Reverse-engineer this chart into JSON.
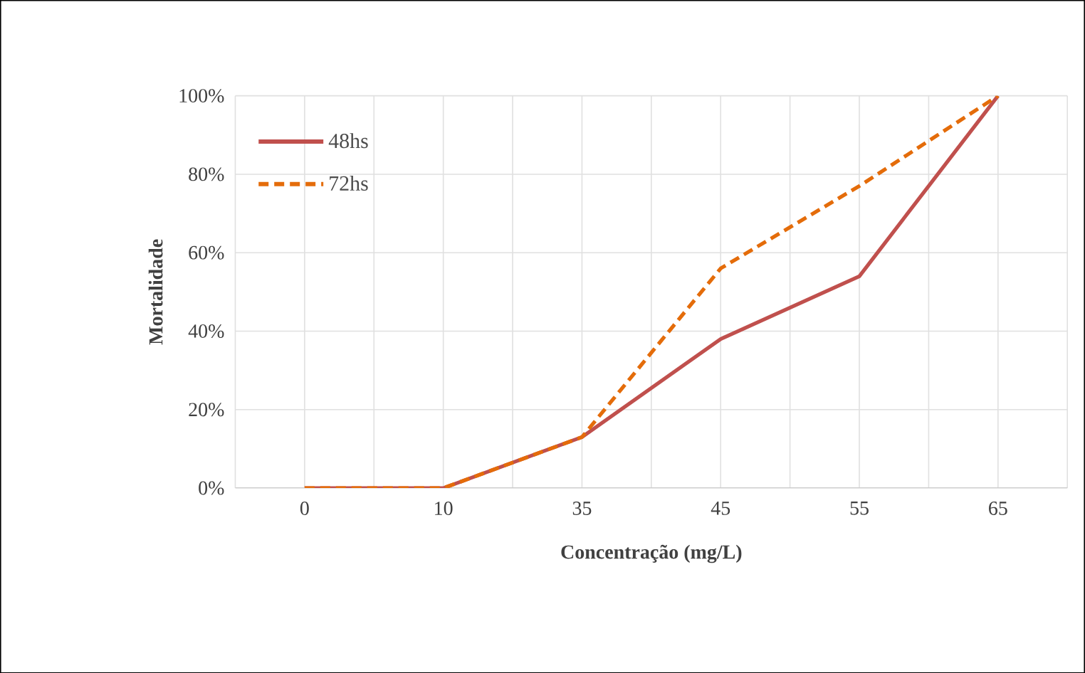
{
  "chart_data": {
    "type": "line",
    "xlabel": "Concentração (mg/L)",
    "ylabel": "Mortalidade",
    "categories": [
      "0",
      "10",
      "35",
      "45",
      "55",
      "65"
    ],
    "series": [
      {
        "name": "48hs",
        "color": "#c0504d",
        "line_style": "solid",
        "values": [
          0,
          0,
          13,
          38,
          54,
          100
        ]
      },
      {
        "name": "72hs",
        "color": "#e46c0a",
        "line_style": "dashed",
        "values": [
          0,
          0,
          13,
          56,
          77,
          100
        ]
      }
    ],
    "ylim": [
      0,
      100
    ],
    "yticks": [
      {
        "value": 0,
        "label": "0%"
      },
      {
        "value": 20,
        "label": "20%"
      },
      {
        "value": 40,
        "label": "40%"
      },
      {
        "value": 60,
        "label": "60%"
      },
      {
        "value": 80,
        "label": "80%"
      },
      {
        "value": 100,
        "label": "100%"
      }
    ],
    "grid": true,
    "legend": "top left"
  }
}
